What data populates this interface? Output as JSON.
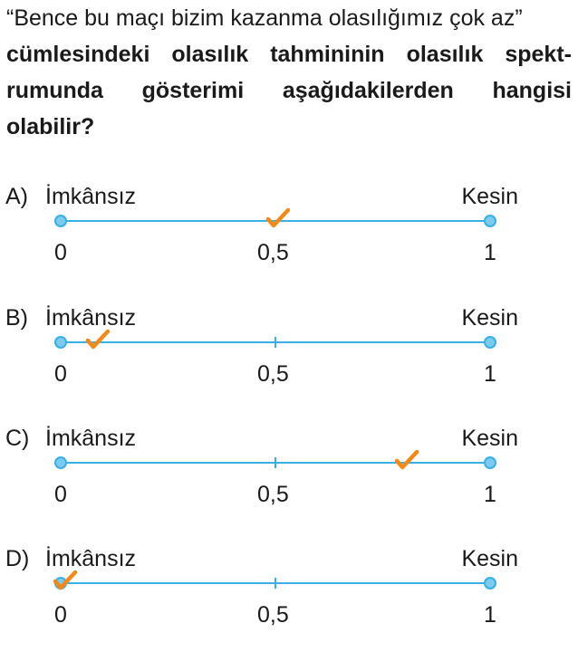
{
  "question": {
    "intro": "“Bence bu maçı bizim kazanma olasılığımız çok az”",
    "bold_lines": [
      "cümlesindeki olasılık tahmininin olasılık spekt-",
      "rumunda gösterimi aşağıdakilerden hangisi",
      "olabilir?"
    ]
  },
  "colors": {
    "line": "#3ab0e2",
    "check": "#f08a1c",
    "text": "#1a1a1a"
  },
  "check_icon": "checkmark-icon",
  "options": [
    {
      "letter": "A)",
      "left_label": "İmkânsız",
      "right_label": "Kesin",
      "ticks": [
        "0",
        "0,5",
        "1"
      ],
      "mark_value": 0.5
    },
    {
      "letter": "B)",
      "left_label": "İmkânsız",
      "right_label": "Kesin",
      "ticks": [
        "0",
        "0,5",
        "1"
      ],
      "mark_value": 0.08
    },
    {
      "letter": "C)",
      "left_label": "İmkânsız",
      "right_label": "Kesin",
      "ticks": [
        "0",
        "0,5",
        "1"
      ],
      "mark_value": 0.8
    },
    {
      "letter": "D)",
      "left_label": "İmkânsız",
      "right_label": "Kesin",
      "ticks": [
        "0",
        "0,5",
        "1"
      ],
      "mark_value": 0.0
    }
  ]
}
